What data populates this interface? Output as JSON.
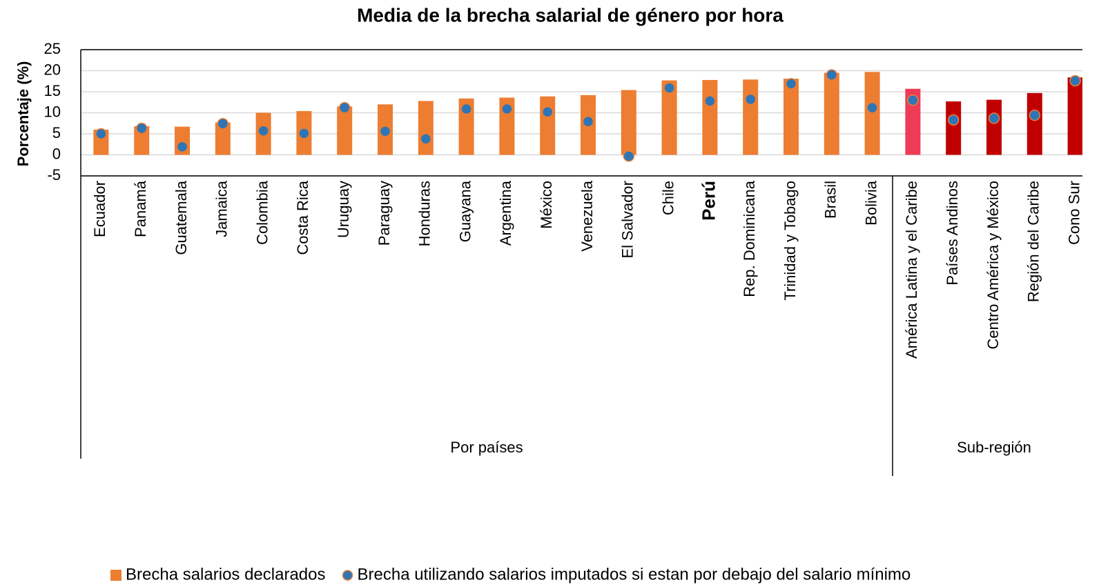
{
  "chart_data": {
    "type": "bar",
    "title": "Media de la brecha salarial de género por hora",
    "y_label": "Porcentaje (%)",
    "categories": [
      "Ecuador",
      "Panamá",
      "Guatemala",
      "Jamaica",
      "Colombia",
      "Costa Rica",
      "Uruguay",
      "Paraguay",
      "Honduras",
      "Guayana",
      "Argentina",
      "México",
      "Venezuela",
      "El Salvador",
      "Chile",
      "Perú",
      "Rep. Dominicana",
      "Trinidad y Tobago",
      "Brasil",
      "Bolivia",
      "América  Latina y el Caribe",
      "Países Andinos",
      "Centro América y México",
      "Región del Caribe",
      "Cono Sur"
    ],
    "bold_categories": [
      "Perú"
    ],
    "groups": [
      {
        "name": "Por países",
        "count": 20
      },
      {
        "name": "Sub-región",
        "count": 5
      }
    ],
    "series": [
      {
        "name": "Brecha salarios declarados",
        "color": "#ED7D31",
        "colors": [
          "#ED7D31",
          "#ED7D31",
          "#ED7D31",
          "#ED7D31",
          "#ED7D31",
          "#ED7D31",
          "#ED7D31",
          "#ED7D31",
          "#ED7D31",
          "#ED7D31",
          "#ED7D31",
          "#ED7D31",
          "#ED7D31",
          "#ED7D31",
          "#ED7D31",
          "#ED7D31",
          "#ED7D31",
          "#ED7D31",
          "#ED7D31",
          "#ED7D31",
          "#EE3B57",
          "#C00000",
          "#C00000",
          "#C00000",
          "#C00000"
        ],
        "values": [
          6,
          6.8,
          6.7,
          7.7,
          10,
          10.4,
          11.5,
          12,
          12.8,
          13.4,
          13.6,
          13.9,
          14.2,
          15.4,
          17.7,
          17.8,
          17.9,
          18.1,
          19.5,
          19.7,
          15.7,
          12.7,
          13.1,
          14.7,
          18.4
        ]
      },
      {
        "name": "Brecha utilizando salarios imputados si estan por debajo del salario mínimo",
        "color": "#2E75B6",
        "marker": "circle",
        "values": [
          5,
          6.3,
          1.9,
          7.4,
          5.7,
          5.1,
          11.2,
          5.6,
          3.8,
          10.9,
          10.9,
          10.2,
          7.9,
          -0.3,
          15.9,
          12.8,
          13.2,
          16.9,
          19,
          11.2,
          13,
          8.3,
          8.7,
          9.4,
          17.6
        ]
      }
    ],
    "ylim": [
      -5,
      25
    ],
    "yticks": [
      -5,
      0,
      5,
      10,
      15,
      20,
      25
    ],
    "grid": true,
    "legend": "bottom"
  }
}
